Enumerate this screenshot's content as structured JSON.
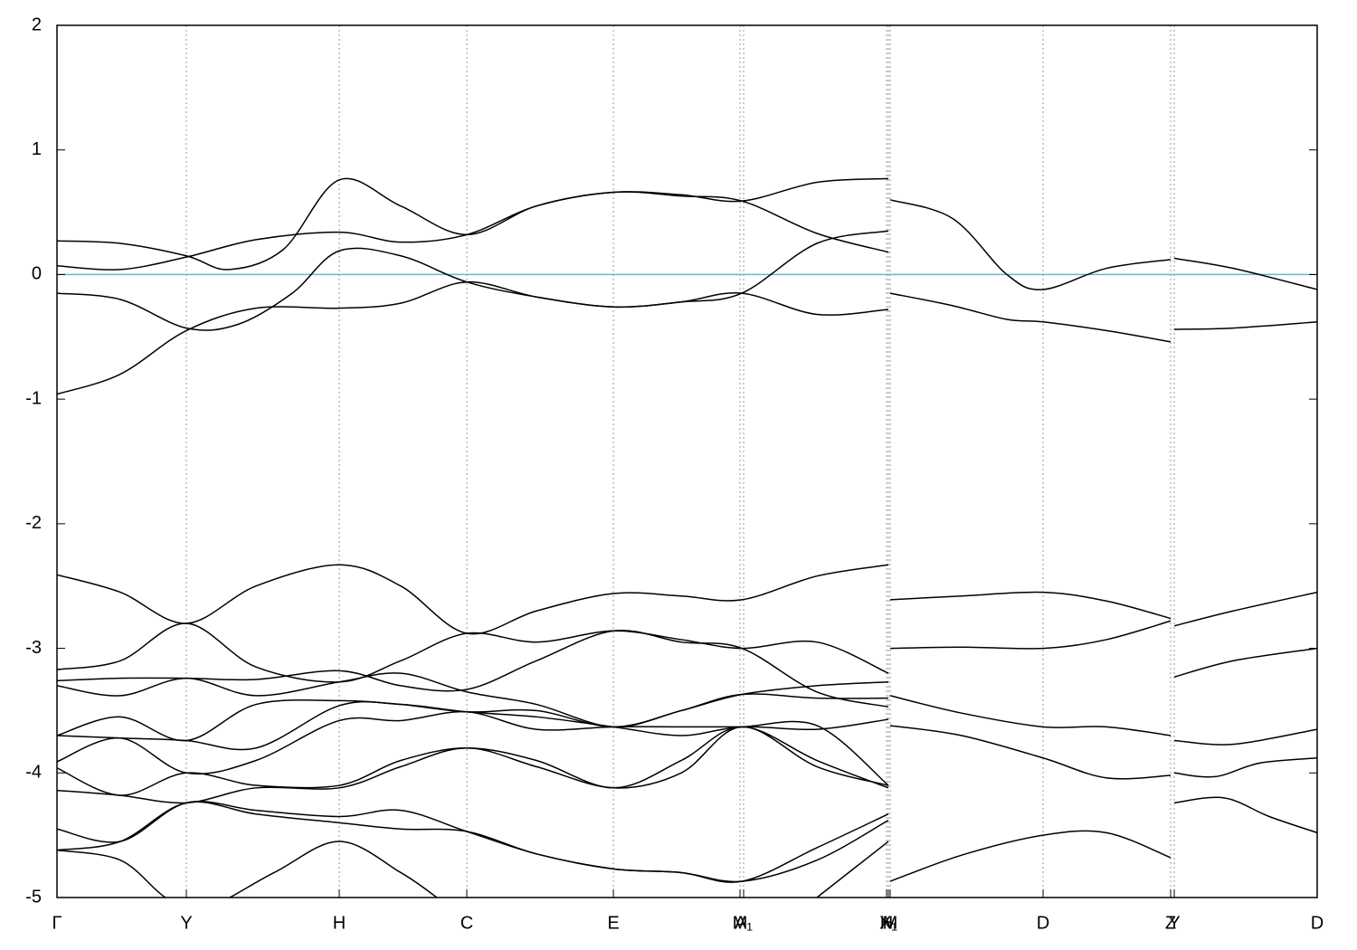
{
  "chart_data": {
    "type": "line",
    "xlim": [
      0,
      13.93
    ],
    "ylim": [
      -5,
      2
    ],
    "yticks": [
      -5,
      -4,
      -3,
      -2,
      -1,
      0,
      1,
      2
    ],
    "xticks": [
      {
        "value": 0,
        "label": "Γ"
      },
      {
        "value": 1.43,
        "label": "Y"
      },
      {
        "value": 3.12,
        "label": "H"
      },
      {
        "value": 4.53,
        "label": "C"
      },
      {
        "value": 6.15,
        "label": "E"
      },
      {
        "value": 7.55,
        "label": "M"
      },
      {
        "value": 7.59,
        "label": "A₁"
      },
      {
        "value": 9.17,
        "label": "H"
      },
      {
        "value": 9.19,
        "label": "X₁"
      },
      {
        "value": 9.21,
        "label": "M"
      },
      {
        "value": 10.9,
        "label": "D"
      },
      {
        "value": 12.31,
        "label": "Z"
      },
      {
        "value": 12.35,
        "label": "Y"
      },
      {
        "value": 13.93,
        "label": "D"
      }
    ],
    "grid": true,
    "hline": {
      "value": 0,
      "color": "#6ab8c8"
    },
    "series": [
      {
        "color": "#000000",
        "x": [
          0,
          0.7,
          1.43,
          1.9,
          2.5,
          3.12,
          3.8,
          4.53,
          5.3,
          6.15,
          6.9,
          7.57,
          8.4,
          9.19
        ],
        "values": [
          0.27,
          0.25,
          0.15,
          0.04,
          0.2,
          0.76,
          0.55,
          0.32,
          0.55,
          0.66,
          0.64,
          0.59,
          0.74,
          0.77
        ]
      },
      {
        "color": "#000000",
        "x": [
          0,
          0.7,
          1.43,
          2.2,
          3.12,
          3.8,
          4.53,
          5.3,
          6.15,
          6.9,
          7.57,
          8.4,
          9.19
        ],
        "values": [
          0.07,
          0.04,
          0.14,
          0.28,
          0.34,
          0.26,
          0.32,
          0.55,
          0.66,
          0.63,
          0.59,
          0.33,
          0.18
        ]
      },
      {
        "color": "#000000",
        "x": [
          0,
          0.7,
          1.43,
          2.0,
          2.6,
          3.12,
          3.8,
          4.53,
          5.3,
          6.15,
          6.9,
          7.57,
          8.4,
          9.19
        ],
        "values": [
          -0.15,
          -0.2,
          -0.43,
          -0.4,
          -0.15,
          0.19,
          0.15,
          -0.06,
          -0.18,
          -0.26,
          -0.22,
          -0.15,
          0.25,
          0.35
        ]
      },
      {
        "color": "#000000",
        "x": [
          0,
          0.7,
          1.43,
          2.2,
          3.12,
          3.8,
          4.53,
          5.3,
          6.15,
          6.9,
          7.57,
          8.4,
          9.19
        ],
        "values": [
          -0.96,
          -0.8,
          -0.45,
          -0.27,
          -0.27,
          -0.23,
          -0.06,
          -0.18,
          -0.26,
          -0.22,
          -0.15,
          -0.32,
          -0.28
        ]
      },
      {
        "color": "#000000",
        "x": [
          9.21,
          9.9,
          10.5,
          10.9,
          11.6,
          12.31
        ],
        "values": [
          0.6,
          0.45,
          0.0,
          -0.12,
          0.05,
          0.12
        ]
      },
      {
        "color": "#000000",
        "x": [
          9.21,
          9.9,
          10.5,
          10.9,
          11.6,
          12.31
        ],
        "values": [
          -0.15,
          -0.25,
          -0.36,
          -0.38,
          -0.45,
          -0.54
        ]
      },
      {
        "color": "#000000",
        "x": [
          12.35,
          13.0,
          13.93
        ],
        "values": [
          0.13,
          0.05,
          -0.12
        ]
      },
      {
        "color": "#000000",
        "x": [
          12.35,
          13.0,
          13.93
        ],
        "values": [
          -0.44,
          -0.43,
          -0.38
        ]
      },
      {
        "color": "#000000",
        "x": [
          0,
          0.7,
          1.43,
          2.2,
          3.12,
          3.8,
          4.53,
          5.3,
          6.15,
          6.9,
          7.57,
          8.4,
          9.19
        ],
        "values": [
          -2.41,
          -2.55,
          -2.8,
          -2.5,
          -2.33,
          -2.5,
          -2.88,
          -2.7,
          -2.56,
          -2.58,
          -2.61,
          -2.42,
          -2.33
        ]
      },
      {
        "color": "#000000",
        "x": [
          0,
          0.7,
          1.43,
          2.2,
          3.12,
          3.8,
          4.53,
          5.3,
          6.15,
          6.9,
          7.57,
          8.4,
          9.19
        ],
        "values": [
          -3.17,
          -3.1,
          -2.8,
          -3.15,
          -3.27,
          -3.1,
          -2.88,
          -2.95,
          -2.86,
          -2.93,
          -3.0,
          -2.95,
          -3.2
        ]
      },
      {
        "color": "#000000",
        "x": [
          0,
          0.7,
          1.43,
          2.2,
          3.12,
          3.8,
          4.53,
          5.3,
          6.15,
          6.9,
          7.57,
          8.4,
          9.19
        ],
        "values": [
          -3.26,
          -3.24,
          -3.24,
          -3.25,
          -3.18,
          -3.3,
          -3.33,
          -3.1,
          -2.86,
          -2.95,
          -3.0,
          -3.35,
          -3.47
        ]
      },
      {
        "color": "#000000",
        "x": [
          0,
          0.7,
          1.43,
          2.2,
          3.12,
          3.8,
          4.53,
          5.3,
          6.15,
          6.9,
          7.57,
          8.4,
          9.19
        ],
        "values": [
          -3.3,
          -3.38,
          -3.24,
          -3.38,
          -3.27,
          -3.2,
          -3.35,
          -3.45,
          -3.63,
          -3.5,
          -3.37,
          -3.3,
          -3.27
        ]
      },
      {
        "color": "#000000",
        "x": [
          0,
          0.7,
          1.43,
          2.2,
          3.12,
          3.8,
          4.53,
          5.3,
          6.15,
          6.9,
          7.57,
          8.4,
          9.19
        ],
        "values": [
          -3.7,
          -3.55,
          -3.74,
          -3.45,
          -3.42,
          -3.45,
          -3.51,
          -3.5,
          -3.63,
          -3.5,
          -3.37,
          -3.4,
          -3.4
        ]
      },
      {
        "color": "#000000",
        "x": [
          0,
          0.7,
          1.43,
          2.2,
          3.12,
          3.8,
          4.53,
          5.3,
          6.15,
          6.9,
          7.57,
          8.4,
          9.19
        ],
        "values": [
          -3.7,
          -3.72,
          -3.74,
          -3.8,
          -3.46,
          -3.45,
          -3.51,
          -3.55,
          -3.63,
          -3.7,
          -3.63,
          -3.65,
          -3.57
        ]
      },
      {
        "color": "#000000",
        "x": [
          0,
          0.7,
          1.43,
          2.2,
          3.12,
          3.8,
          4.53,
          5.3,
          6.15,
          6.9,
          7.57,
          8.4,
          9.19
        ],
        "values": [
          -3.91,
          -3.72,
          -4.0,
          -3.9,
          -3.58,
          -3.58,
          -3.51,
          -3.65,
          -3.63,
          -3.63,
          -3.63,
          -3.62,
          -4.1
        ]
      },
      {
        "color": "#000000",
        "x": [
          0,
          0.7,
          1.43,
          2.2,
          3.12,
          3.8,
          4.53,
          5.3,
          6.15,
          6.9,
          7.57,
          8.4,
          9.19
        ],
        "values": [
          -3.96,
          -4.18,
          -4.0,
          -4.1,
          -4.1,
          -3.9,
          -3.8,
          -3.9,
          -4.12,
          -3.9,
          -3.63,
          -3.9,
          -4.12
        ]
      },
      {
        "color": "#000000",
        "x": [
          0,
          0.7,
          1.43,
          2.2,
          3.12,
          3.8,
          4.53,
          5.3,
          6.15,
          6.9,
          7.57,
          8.4,
          9.19
        ],
        "values": [
          -4.14,
          -4.18,
          -4.24,
          -4.12,
          -4.12,
          -3.95,
          -3.8,
          -3.95,
          -4.12,
          -4.0,
          -3.63,
          -3.95,
          -4.1
        ]
      },
      {
        "color": "#000000",
        "x": [
          0,
          0.7,
          1.43,
          2.2,
          3.12,
          3.8,
          4.53,
          5.3,
          6.15,
          6.9,
          7.57,
          8.4,
          9.19
        ],
        "values": [
          -4.45,
          -4.55,
          -4.24,
          -4.3,
          -4.35,
          -4.3,
          -4.47,
          -4.65,
          -4.77,
          -4.8,
          -4.87,
          -4.6,
          -4.33
        ]
      },
      {
        "color": "#000000",
        "x": [
          0,
          0.7,
          1.43,
          2.2,
          3.12,
          3.8,
          4.53,
          5.3,
          6.15,
          6.9,
          7.57,
          8.4,
          9.19
        ],
        "values": [
          -4.62,
          -4.55,
          -4.24,
          -4.33,
          -4.4,
          -4.45,
          -4.47,
          -4.65,
          -4.77,
          -4.8,
          -4.87,
          -4.7,
          -4.38
        ]
      },
      {
        "color": "#000000",
        "x": [
          0,
          0.7,
          1.2,
          1.6,
          2.4,
          3.12,
          3.8,
          4.2
        ],
        "values": [
          -4.62,
          -4.7,
          -5.0,
          -5.1,
          -4.8,
          -4.55,
          -4.8,
          -5.0
        ]
      },
      {
        "color": "#000000",
        "x": [
          8.4,
          9.19
        ],
        "values": [
          -5.0,
          -4.55
        ]
      },
      {
        "color": "#000000",
        "x": [
          9.21,
          10.0,
          10.9,
          11.6,
          12.31
        ],
        "values": [
          -2.61,
          -2.58,
          -2.55,
          -2.62,
          -2.76
        ]
      },
      {
        "color": "#000000",
        "x": [
          9.21,
          10.0,
          10.9,
          11.6,
          12.31
        ],
        "values": [
          -3.0,
          -2.99,
          -3.0,
          -2.93,
          -2.78
        ]
      },
      {
        "color": "#000000",
        "x": [
          9.21,
          10.0,
          10.9,
          11.6,
          12.31
        ],
        "values": [
          -3.38,
          -3.52,
          -3.63,
          -3.63,
          -3.7
        ]
      },
      {
        "color": "#000000",
        "x": [
          9.21,
          10.0,
          10.9,
          11.6,
          12.31
        ],
        "values": [
          -3.62,
          -3.7,
          -3.88,
          -4.04,
          -4.02
        ]
      },
      {
        "color": "#000000",
        "x": [
          9.21,
          10.0,
          10.9,
          11.6,
          12.31
        ],
        "values": [
          -4.87,
          -4.66,
          -4.5,
          -4.48,
          -4.68
        ]
      },
      {
        "color": "#000000",
        "x": [
          12.35,
          13.0,
          13.93
        ],
        "values": [
          -2.82,
          -2.7,
          -2.55
        ]
      },
      {
        "color": "#000000",
        "x": [
          12.35,
          13.0,
          13.93
        ],
        "values": [
          -3.23,
          -3.1,
          -3.0
        ]
      },
      {
        "color": "#000000",
        "x": [
          12.35,
          13.0,
          13.93
        ],
        "values": [
          -3.74,
          -3.77,
          -3.65
        ]
      },
      {
        "color": "#000000",
        "x": [
          12.35,
          12.8,
          13.3,
          13.93
        ],
        "values": [
          -4.0,
          -4.03,
          -3.92,
          -3.88
        ]
      },
      {
        "color": "#000000",
        "x": [
          12.35,
          12.9,
          13.4,
          13.93
        ],
        "values": [
          -4.24,
          -4.2,
          -4.35,
          -4.48
        ]
      }
    ]
  }
}
